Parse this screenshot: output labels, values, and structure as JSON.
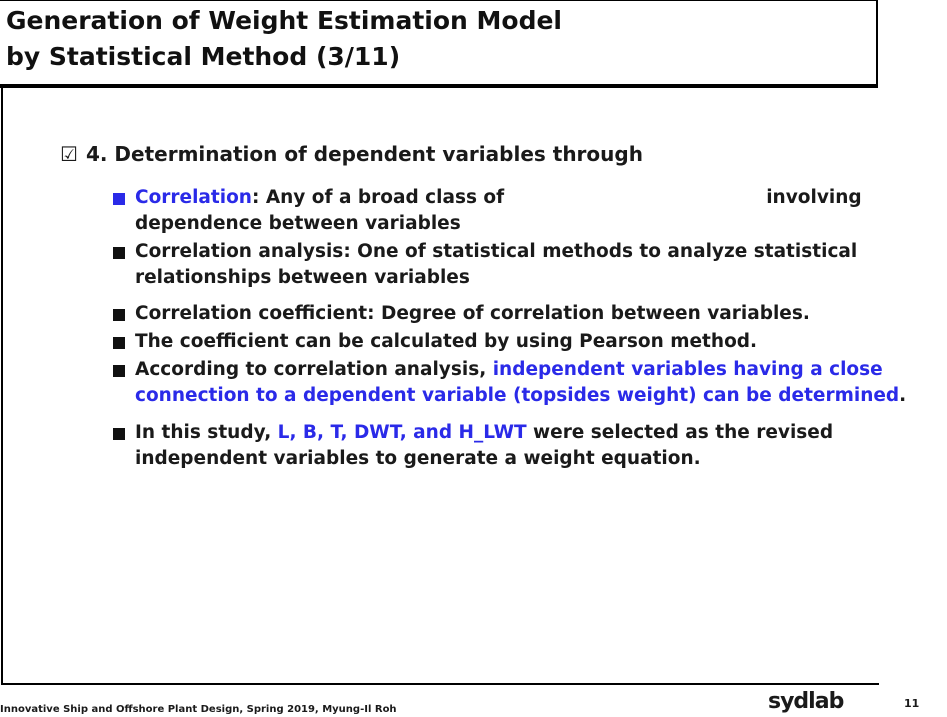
{
  "header": {
    "title_lines": [
      "Generation of Weight Estimation Model",
      "by Statistical Method (3/11)"
    ]
  },
  "heading": "4. Determination of dependent variables through",
  "bullets": [
    [
      {
        "text": "Correlation"
      },
      {
        "text": ": Any of a broad class of"
      },
      {
        "text": "involving"
      },
      {
        "text": "dependence between variables"
      }
    ],
    [
      {
        "text": "Correlation analysis: One of statistical methods to analyze statistical relationships between variables"
      }
    ],
    [
      {
        "text": "Correlation coefficient: Degree of correlation between variables."
      }
    ],
    [
      {
        "text": "The coefficient can be calculated by using Pearson method."
      }
    ],
    [
      {
        "text": "According to correlation analysis, "
      },
      {
        "text": "independent variables having a close connection to a dependent variable (topsides weight) can be determined"
      },
      {
        "text": "."
      }
    ],
    [
      {
        "text": "In this study, "
      },
      {
        "text": "L, B, T, DWT, and H_LWT"
      },
      {
        "text": " were selected as the revised independent variables to generate a weight equation."
      }
    ]
  ],
  "footer": {
    "course": "Innovative Ship and Offshore Plant Design, Spring 2019, Myung-Il Roh",
    "logo": "sydlab",
    "page": "11"
  }
}
